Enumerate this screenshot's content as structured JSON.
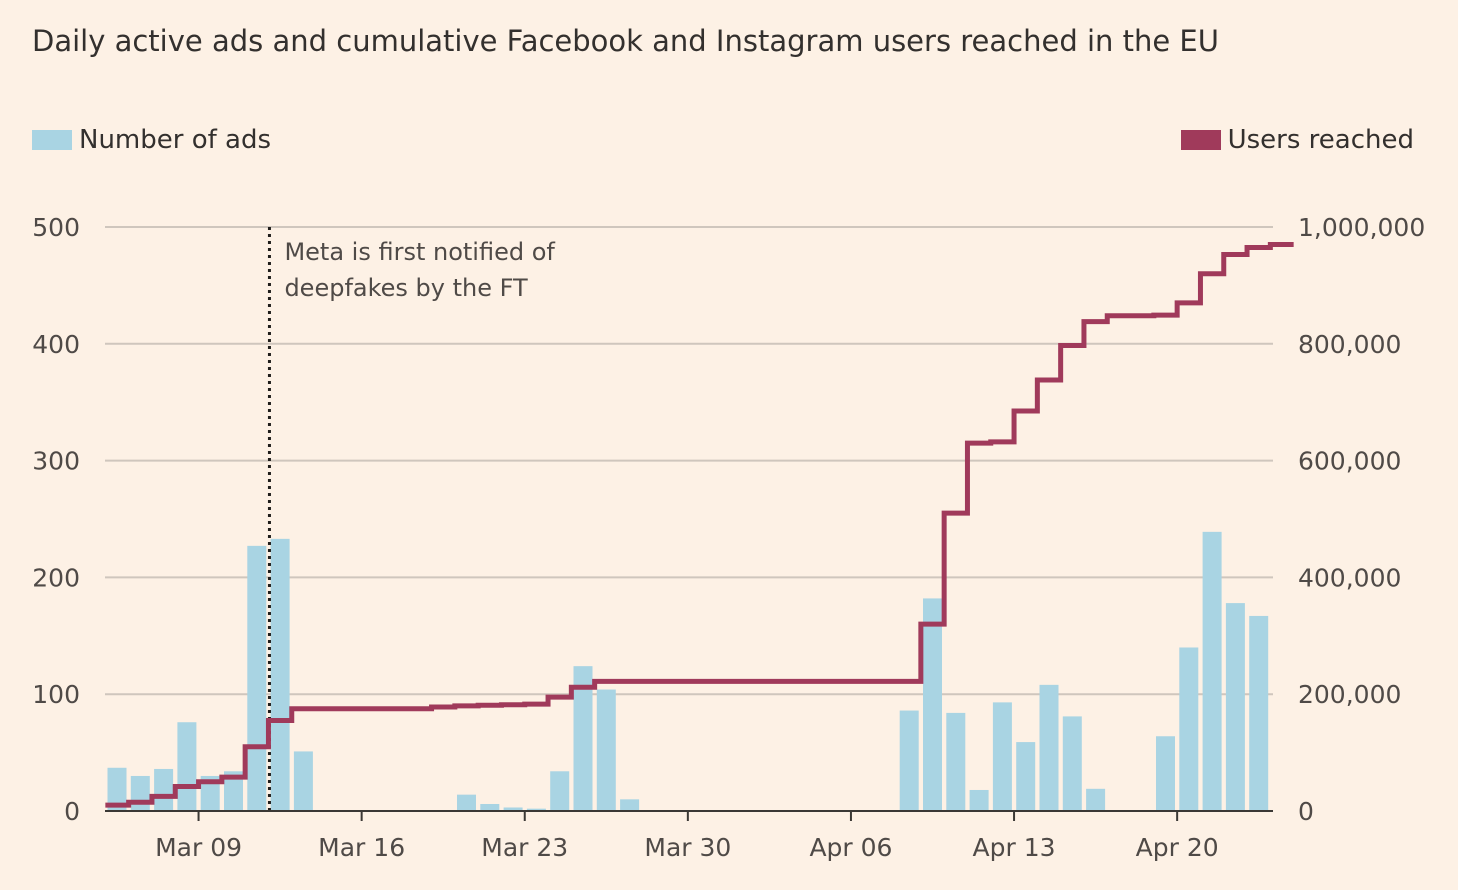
{
  "title": "Daily active ads and cumulative Facebook and Instagram users reached in the EU",
  "legend": {
    "bars_label": "Number of ads",
    "line_label": "Users reached"
  },
  "colors": {
    "background": "#fdf1e5",
    "bars": "#a9d4e3",
    "line": "#a03a5b",
    "grid": "#cfc6bd"
  },
  "chart_data": {
    "type": "bar",
    "x_start_date": "Mar 05",
    "x_end_date": "Apr 24",
    "days": [
      "Mar 05",
      "Mar 06",
      "Mar 07",
      "Mar 08",
      "Mar 09",
      "Mar 10",
      "Mar 11",
      "Mar 12",
      "Mar 13",
      "Mar 14",
      "Mar 15",
      "Mar 16",
      "Mar 17",
      "Mar 18",
      "Mar 19",
      "Mar 20",
      "Mar 21",
      "Mar 22",
      "Mar 23",
      "Mar 24",
      "Mar 25",
      "Mar 26",
      "Mar 27",
      "Mar 28",
      "Mar 29",
      "Mar 30",
      "Mar 31",
      "Apr 01",
      "Apr 02",
      "Apr 03",
      "Apr 04",
      "Apr 05",
      "Apr 06",
      "Apr 07",
      "Apr 08",
      "Apr 09",
      "Apr 10",
      "Apr 11",
      "Apr 12",
      "Apr 13",
      "Apr 14",
      "Apr 15",
      "Apr 16",
      "Apr 17",
      "Apr 18",
      "Apr 19",
      "Apr 20",
      "Apr 21",
      "Apr 22",
      "Apr 23",
      "Apr 24"
    ],
    "series": [
      {
        "name": "Number of ads",
        "axis": "left",
        "values": [
          37,
          30,
          36,
          76,
          30,
          34,
          227,
          233,
          51,
          0,
          0,
          0,
          0,
          0,
          0,
          14,
          6,
          3,
          2,
          34,
          124,
          104,
          10,
          0,
          0,
          0,
          0,
          0,
          0,
          0,
          0,
          0,
          0,
          0,
          86,
          182,
          84,
          18,
          93,
          59,
          108,
          81,
          19,
          0,
          0,
          64,
          140,
          239,
          178,
          167,
          0
        ]
      },
      {
        "name": "Users reached",
        "axis": "right",
        "values": [
          10000,
          15000,
          25000,
          42000,
          50000,
          58000,
          110000,
          155000,
          175000,
          175000,
          175000,
          175000,
          175000,
          175000,
          178000,
          180000,
          181000,
          182000,
          183000,
          195000,
          212000,
          222000,
          222000,
          222000,
          222000,
          222000,
          222000,
          222000,
          222000,
          222000,
          222000,
          222000,
          222000,
          222000,
          222000,
          320000,
          510000,
          630000,
          632000,
          685000,
          738000,
          797000,
          838000,
          848000,
          848000,
          849000,
          870000,
          920000,
          953000,
          965000,
          970000
        ]
      }
    ],
    "x_ticks": [
      "Mar 09",
      "Mar 16",
      "Mar 23",
      "Mar 30",
      "Apr 06",
      "Apr 13",
      "Apr 20"
    ],
    "x_tick_days": [
      4,
      11,
      18,
      25,
      32,
      39,
      46
    ],
    "y_left": {
      "ticks": [
        "0",
        "100",
        "200",
        "300",
        "400",
        "500"
      ],
      "range": [
        0,
        500
      ]
    },
    "y_right": {
      "ticks": [
        "0",
        "200,000",
        "400,000",
        "600,000",
        "800,000",
        "1,000,000"
      ],
      "range": [
        0,
        1000000
      ]
    },
    "annotation": {
      "day": 7,
      "lines": [
        "Meta is first notified of",
        "deepfakes by the FT"
      ]
    }
  }
}
